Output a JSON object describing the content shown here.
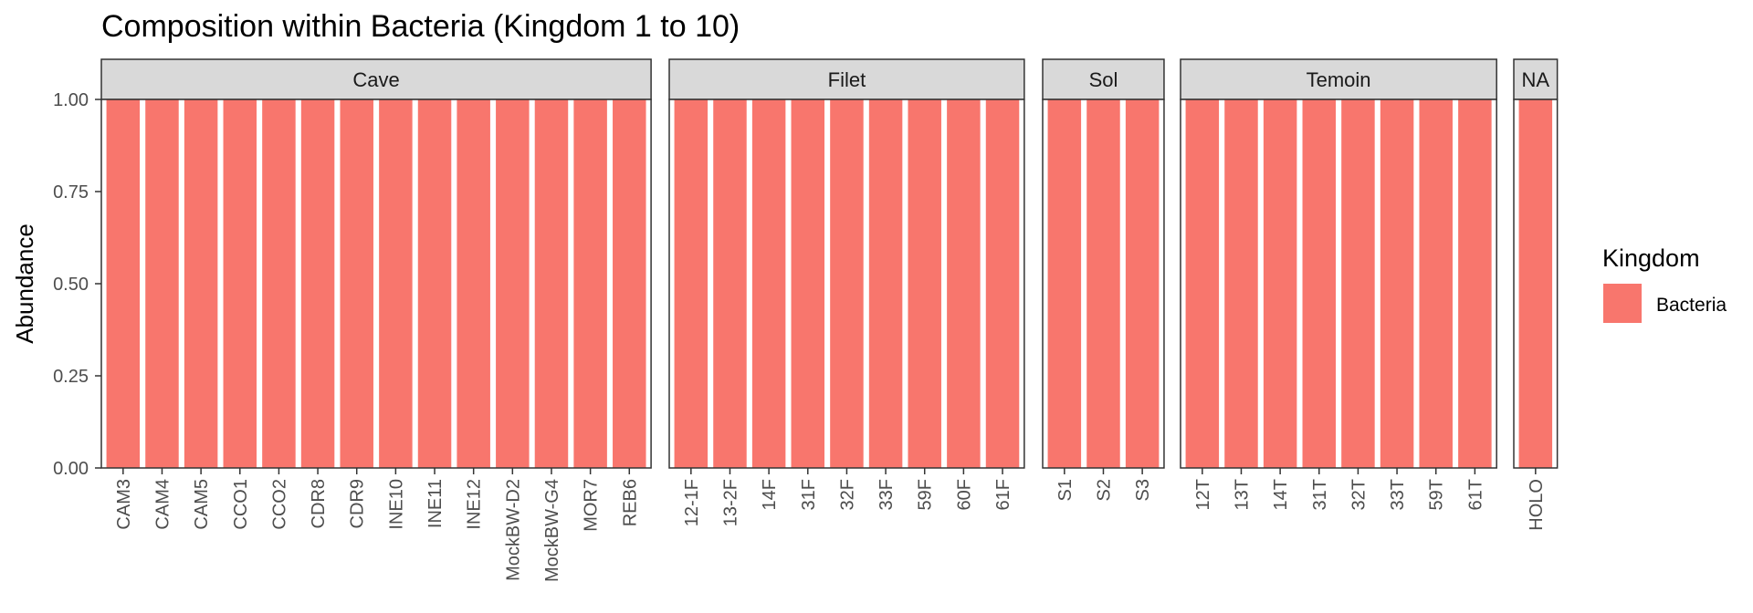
{
  "chart_data": {
    "type": "bar",
    "title": "Composition within Bacteria (Kingdom 1 to 10)",
    "xlabel": "",
    "ylabel": "Abundance",
    "ylim": [
      0,
      1
    ],
    "yticks": [
      "0.00",
      "0.25",
      "0.50",
      "0.75",
      "1.00"
    ],
    "facets": [
      {
        "name": "Cave",
        "categories": [
          "CAM3",
          "CAM4",
          "CAM5",
          "CCO1",
          "CCO2",
          "CDR8",
          "CDR9",
          "INE10",
          "INE11",
          "INE12",
          "MockBW-D2",
          "MockBW-G4",
          "MOR7",
          "REB6"
        ],
        "values": [
          1,
          1,
          1,
          1,
          1,
          1,
          1,
          1,
          1,
          1,
          1,
          1,
          1,
          1
        ]
      },
      {
        "name": "Filet",
        "categories": [
          "12-1F",
          "13-2F",
          "14F",
          "31F",
          "32F",
          "33F",
          "59F",
          "60F",
          "61F"
        ],
        "values": [
          1,
          1,
          1,
          1,
          1,
          1,
          1,
          1,
          1
        ]
      },
      {
        "name": "Sol",
        "categories": [
          "S1",
          "S2",
          "S3"
        ],
        "values": [
          1,
          1,
          1
        ]
      },
      {
        "name": "Temoin",
        "categories": [
          "12T",
          "13T",
          "14T",
          "31T",
          "32T",
          "33T",
          "59T",
          "61T"
        ],
        "values": [
          1,
          1,
          1,
          1,
          1,
          1,
          1,
          1
        ]
      },
      {
        "name": "NA",
        "categories": [
          "HOLO"
        ],
        "values": [
          1
        ]
      }
    ],
    "series": [
      {
        "name": "Bacteria",
        "color": "#F8766D"
      }
    ],
    "legend": {
      "title": "Kingdom",
      "position": "right"
    },
    "grid": false
  }
}
